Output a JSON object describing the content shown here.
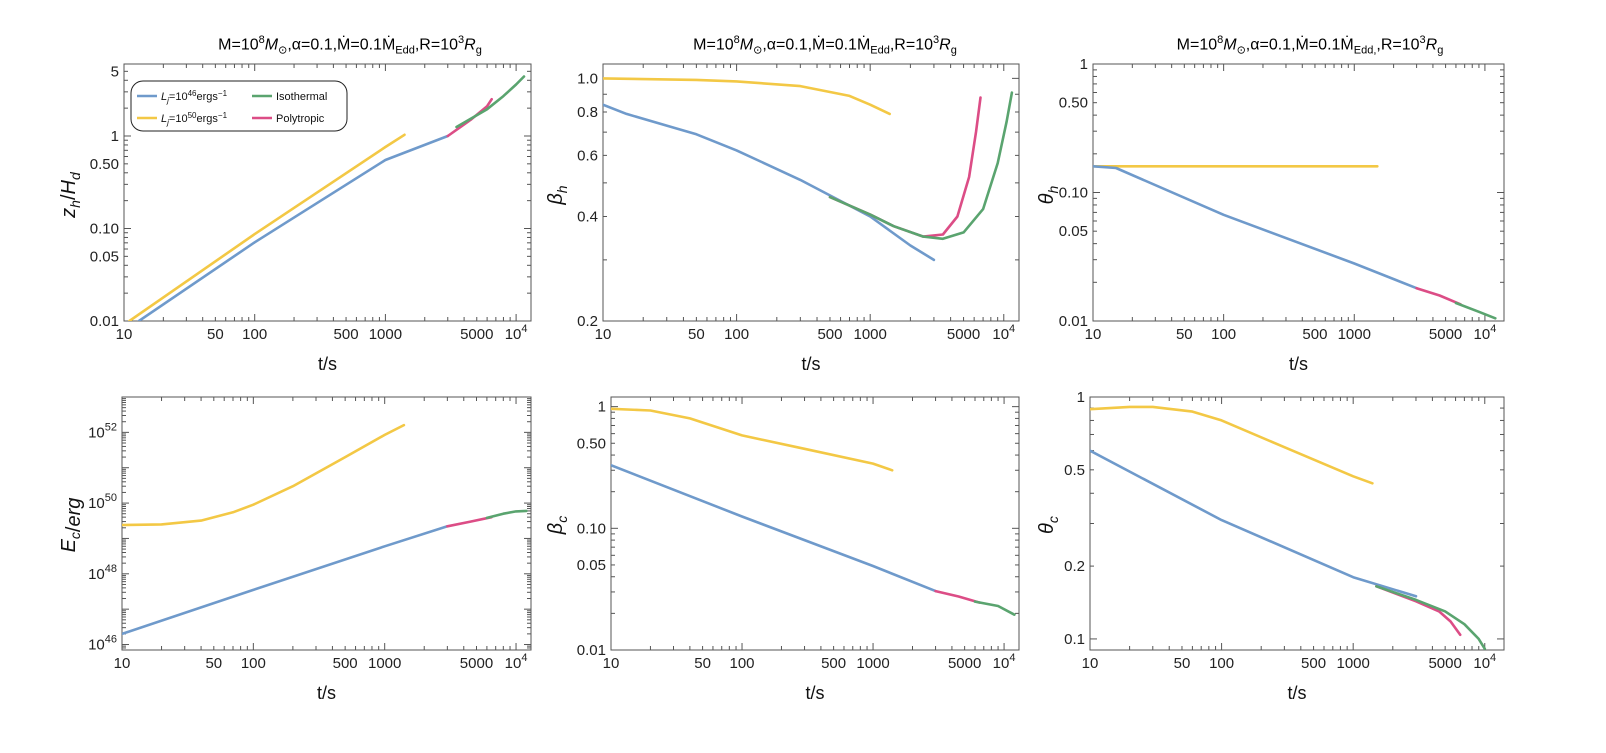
{
  "figure": {
    "panel_titles": [
      {
        "pre": "M=10",
        "sup1": "8",
        "mid1": "M",
        "sub1": "⊙",
        "mid2": ",α=0.1,Ṁ=0.1Ṁ",
        "sub2": "Edd",
        "mid3": ",R=10",
        "sup2": "3",
        "mid4": "R",
        "sub3": "g"
      },
      {
        "pre": "M=10",
        "sup1": "8",
        "mid1": "M",
        "sub1": "⊙",
        "mid2": ",α=0.1,Ṁ=0.1Ṁ",
        "sub2": "Edd",
        "mid3": ",R=10",
        "sup2": "3",
        "mid4": "R",
        "sub3": "g"
      },
      {
        "pre": "M=10",
        "sup1": "8",
        "mid1": "M",
        "sub1": "⊙",
        "mid2": ",α=0.1,Ṁ=0.1Ṁ",
        "sub2": "Edd,",
        "mid3": ",R=10",
        "sup2": "3",
        "mid4": "R",
        "sub3": "g"
      }
    ],
    "colors": {
      "Lj46": "#6f9acb",
      "Lj50": "#f3c845",
      "isothermal": "#5aa46f",
      "polytropic": "#dc4d86"
    }
  },
  "legend": {
    "entries": [
      {
        "key": "Lj46",
        "text": "L",
        "sub": "j",
        "rest": "=10",
        "sup": "46",
        "unit": "ergs",
        "unit_sup": "−1"
      },
      {
        "key": "isothermal",
        "text": "Isothermal"
      },
      {
        "key": "Lj50",
        "text": "L",
        "sub": "j",
        "rest": "=10",
        "sup": "50",
        "unit": "ergs",
        "unit_sup": "−1"
      },
      {
        "key": "polytropic",
        "text": "Polytropic"
      }
    ]
  },
  "chart_data": [
    {
      "type": "line",
      "scale": "log-log",
      "xlabel": "t/s",
      "ylabel": "z_h/H_d",
      "xlim": [
        10,
        13000
      ],
      "ylim": [
        0.01,
        6
      ],
      "xticks": [
        [
          10,
          "10"
        ],
        [
          50,
          "50"
        ],
        [
          100,
          "100"
        ],
        [
          500,
          "500"
        ],
        [
          1000,
          "1000"
        ],
        [
          5000,
          "5000"
        ],
        [
          10000,
          "10^4"
        ]
      ],
      "yticks": [
        [
          0.01,
          "0.01"
        ],
        [
          0.05,
          "0.05"
        ],
        [
          0.1,
          "0.10"
        ],
        [
          0.5,
          "0.50"
        ],
        [
          1,
          "1"
        ],
        [
          5,
          "5"
        ]
      ],
      "series": [
        {
          "key": "Lj50",
          "x": [
            11,
            100,
            1000,
            1400
          ],
          "y": [
            0.01,
            0.087,
            0.76,
            1.03
          ]
        },
        {
          "key": "Lj46",
          "x": [
            13,
            100,
            1000,
            3000
          ],
          "y": [
            0.01,
            0.071,
            0.55,
            1.0
          ]
        },
        {
          "key": "polytropic",
          "x": [
            3000,
            4500,
            6000,
            6500
          ],
          "y": [
            1.0,
            1.5,
            2.1,
            2.5
          ]
        },
        {
          "key": "isothermal",
          "x": [
            3500,
            6000,
            8000,
            10000,
            11500
          ],
          "y": [
            1.25,
            1.95,
            2.7,
            3.6,
            4.4
          ]
        }
      ]
    },
    {
      "type": "line",
      "scale": "log-log",
      "xlabel": "t/s",
      "ylabel": "β_h",
      "xlim": [
        10,
        13000
      ],
      "ylim": [
        0.2,
        1.1
      ],
      "xticks": [
        [
          10,
          "10"
        ],
        [
          50,
          "50"
        ],
        [
          100,
          "100"
        ],
        [
          500,
          "500"
        ],
        [
          1000,
          "1000"
        ],
        [
          5000,
          "5000"
        ],
        [
          10000,
          "10^4"
        ]
      ],
      "yticks": [
        [
          0.2,
          "0.2"
        ],
        [
          0.4,
          "0.4"
        ],
        [
          0.6,
          "0.6"
        ],
        [
          0.8,
          "0.8"
        ],
        [
          1.0,
          "1.0"
        ]
      ],
      "series": [
        {
          "key": "Lj50",
          "x": [
            10,
            50,
            100,
            300,
            700,
            1000,
            1400
          ],
          "y": [
            1.0,
            0.99,
            0.98,
            0.95,
            0.89,
            0.84,
            0.79
          ]
        },
        {
          "key": "Lj46",
          "x": [
            10,
            15,
            50,
            100,
            300,
            1000,
            2000,
            3000
          ],
          "y": [
            0.84,
            0.79,
            0.69,
            0.62,
            0.51,
            0.4,
            0.33,
            0.3
          ]
        },
        {
          "key": "polytropic",
          "x": [
            500,
            1000,
            1500,
            2500,
            3500,
            4500,
            5500,
            6200,
            6700
          ],
          "y": [
            0.455,
            0.405,
            0.375,
            0.35,
            0.355,
            0.4,
            0.52,
            0.7,
            0.88
          ]
        },
        {
          "key": "isothermal",
          "x": [
            500,
            1000,
            1500,
            2500,
            3500,
            5000,
            7000,
            9000,
            10500,
            11500
          ],
          "y": [
            0.455,
            0.405,
            0.375,
            0.35,
            0.345,
            0.36,
            0.42,
            0.57,
            0.75,
            0.91
          ]
        }
      ]
    },
    {
      "type": "line",
      "scale": "log-log",
      "xlabel": "t/s",
      "ylabel": "θ_h",
      "xlim": [
        10,
        14000
      ],
      "ylim": [
        0.01,
        1
      ],
      "xticks": [
        [
          10,
          "10"
        ],
        [
          50,
          "50"
        ],
        [
          100,
          "100"
        ],
        [
          500,
          "500"
        ],
        [
          1000,
          "1000"
        ],
        [
          5000,
          "5000"
        ],
        [
          10000,
          "10^4"
        ]
      ],
      "yticks": [
        [
          0.01,
          "0.01"
        ],
        [
          0.05,
          "0.05"
        ],
        [
          0.1,
          "0.10"
        ],
        [
          0.5,
          "0.50"
        ],
        [
          1,
          "1"
        ]
      ],
      "series": [
        {
          "key": "Lj50",
          "x": [
            10,
            1500
          ],
          "y": [
            0.16,
            0.16
          ]
        },
        {
          "key": "Lj46",
          "x": [
            10,
            15,
            100,
            1000,
            3000
          ],
          "y": [
            0.16,
            0.155,
            0.067,
            0.028,
            0.018
          ]
        },
        {
          "key": "polytropic",
          "x": [
            3000,
            4500,
            6500
          ],
          "y": [
            0.018,
            0.0158,
            0.0135
          ]
        },
        {
          "key": "isothermal",
          "x": [
            6000,
            9000,
            12000
          ],
          "y": [
            0.0138,
            0.0118,
            0.0105
          ]
        }
      ]
    },
    {
      "type": "line",
      "scale": "log-log",
      "xlabel": "t/s",
      "ylabel": "E_c/erg",
      "xlim": [
        10,
        13000
      ],
      "ylim": [
        7e+45,
        1e+53
      ],
      "xticks": [
        [
          10,
          "10"
        ],
        [
          50,
          "50"
        ],
        [
          100,
          "100"
        ],
        [
          500,
          "500"
        ],
        [
          1000,
          "1000"
        ],
        [
          5000,
          "5000"
        ],
        [
          10000,
          "10^4"
        ]
      ],
      "yticks": [
        [
          1e+46,
          "10^46"
        ],
        [
          1e+48,
          "10^48"
        ],
        [
          1e+50,
          "10^50"
        ],
        [
          1e+52,
          "10^52"
        ]
      ],
      "series": [
        {
          "key": "Lj50",
          "x": [
            10,
            20,
            40,
            70,
            100,
            200,
            500,
            1000,
            1400
          ],
          "y": [
            2.4e+49,
            2.5e+49,
            3.2e+49,
            5.5e+49,
            9e+49,
            3e+50,
            2e+51,
            8.5e+51,
            1.6e+52
          ]
        },
        {
          "key": "Lj46",
          "x": [
            10,
            100,
            1000,
            3000
          ],
          "y": [
            2e+46,
            3.5e+47,
            6e+48,
            2.2e+49
          ]
        },
        {
          "key": "polytropic",
          "x": [
            3000,
            4500,
            6500
          ],
          "y": [
            2.2e+49,
            3e+49,
            4e+49
          ]
        },
        {
          "key": "isothermal",
          "x": [
            6000,
            8000,
            10000,
            12000
          ],
          "y": [
            3.8e+49,
            5e+49,
            5.8e+49,
            6e+49
          ]
        }
      ]
    },
    {
      "type": "line",
      "scale": "log-log",
      "xlabel": "t/s",
      "ylabel": "β_c",
      "xlim": [
        10,
        13000
      ],
      "ylim": [
        0.01,
        1.2
      ],
      "xticks": [
        [
          10,
          "10"
        ],
        [
          50,
          "50"
        ],
        [
          100,
          "100"
        ],
        [
          500,
          "500"
        ],
        [
          1000,
          "1000"
        ],
        [
          5000,
          "5000"
        ],
        [
          10000,
          "10^4"
        ]
      ],
      "yticks": [
        [
          0.01,
          "0.01"
        ],
        [
          0.05,
          "0.05"
        ],
        [
          0.1,
          "0.10"
        ],
        [
          0.5,
          "0.50"
        ],
        [
          1,
          "1"
        ]
      ],
      "series": [
        {
          "key": "Lj50",
          "x": [
            10,
            20,
            40,
            100,
            300,
            1000,
            1400
          ],
          "y": [
            0.96,
            0.93,
            0.8,
            0.58,
            0.45,
            0.34,
            0.3
          ]
        },
        {
          "key": "Lj46",
          "x": [
            10,
            100,
            1000,
            3000
          ],
          "y": [
            0.33,
            0.125,
            0.049,
            0.0305
          ]
        },
        {
          "key": "polytropic",
          "x": [
            3000,
            4500,
            6500
          ],
          "y": [
            0.0305,
            0.0275,
            0.0245
          ]
        },
        {
          "key": "isothermal",
          "x": [
            6000,
            9000,
            12000
          ],
          "y": [
            0.025,
            0.023,
            0.0195
          ]
        }
      ]
    },
    {
      "type": "line",
      "scale": "log-log",
      "xlabel": "t/s",
      "ylabel": "θ_c",
      "xlim": [
        10,
        14000
      ],
      "ylim": [
        0.09,
        1.0
      ],
      "xticks": [
        [
          10,
          "10"
        ],
        [
          50,
          "50"
        ],
        [
          100,
          "100"
        ],
        [
          500,
          "500"
        ],
        [
          1000,
          "1000"
        ],
        [
          5000,
          "5000"
        ],
        [
          10000,
          "10^4"
        ]
      ],
      "yticks": [
        [
          0.1,
          "0.1"
        ],
        [
          0.2,
          "0.2"
        ],
        [
          0.5,
          "0.5"
        ],
        [
          1,
          "1"
        ]
      ],
      "series": [
        {
          "key": "Lj50",
          "x": [
            10,
            20,
            30,
            60,
            100,
            300,
            1000,
            1400
          ],
          "y": [
            0.89,
            0.91,
            0.91,
            0.87,
            0.8,
            0.62,
            0.47,
            0.44
          ]
        },
        {
          "key": "Lj46",
          "x": [
            10,
            100,
            1000,
            3000
          ],
          "y": [
            0.6,
            0.31,
            0.18,
            0.15
          ]
        },
        {
          "key": "polytropic",
          "x": [
            1500,
            3000,
            4500,
            5500,
            6500
          ],
          "y": [
            0.165,
            0.143,
            0.13,
            0.118,
            0.104
          ]
        },
        {
          "key": "isothermal",
          "x": [
            1500,
            3000,
            5000,
            7000,
            9000,
            10000
          ],
          "y": [
            0.165,
            0.145,
            0.13,
            0.115,
            0.1,
            0.091
          ]
        }
      ]
    }
  ]
}
